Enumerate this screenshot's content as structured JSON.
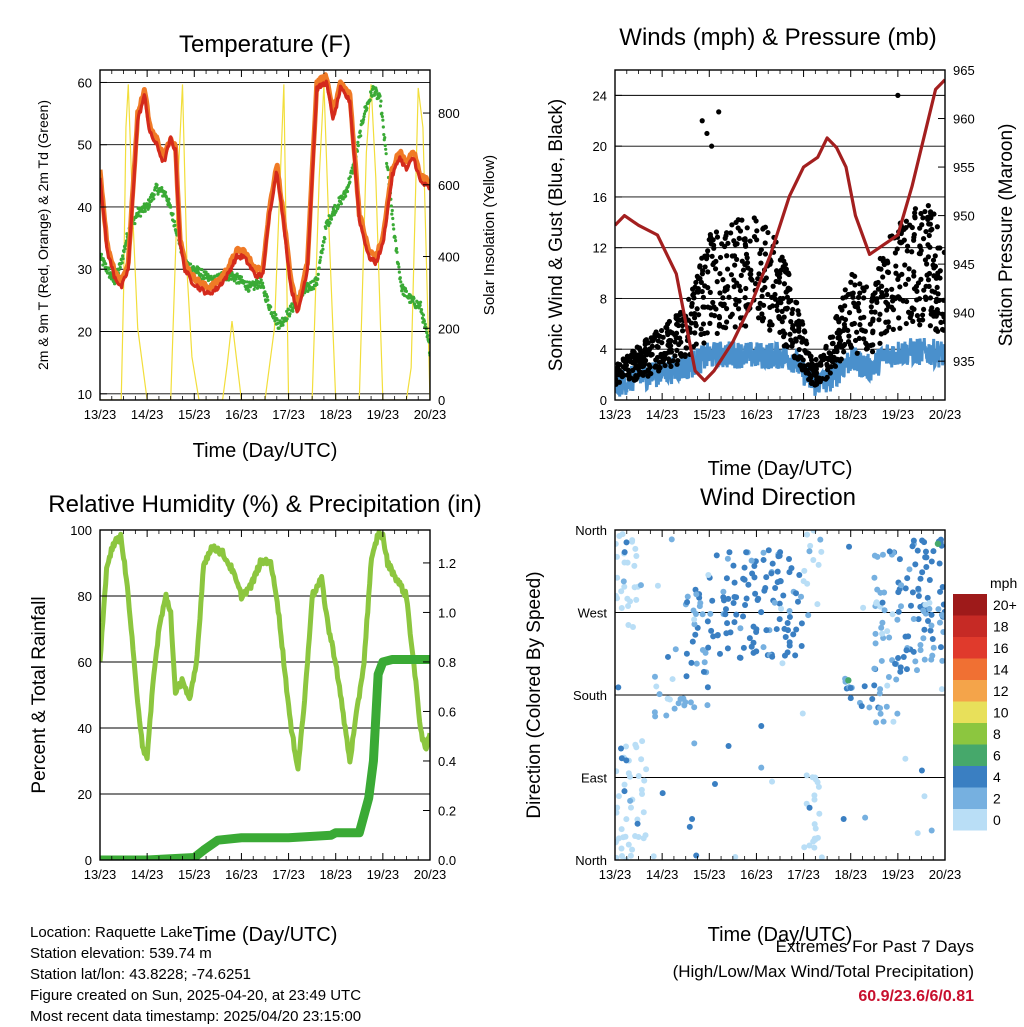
{
  "chart_data": [
    {
      "id": "temperature",
      "type": "line",
      "title": "Temperature (F)",
      "xlabel": "Time (Day/UTC)",
      "ylabel": "2m & 9m T (Red, Orange) & 2m Td (Green)",
      "ylabel_right": "Solar Insolation (Yellow)",
      "x_ticks": [
        "13/23",
        "14/23",
        "15/23",
        "16/23",
        "17/23",
        "18/23",
        "19/23",
        "20/23"
      ],
      "ylim": [
        9,
        62
      ],
      "y_ticks": [
        10,
        20,
        30,
        40,
        50,
        60
      ],
      "ylim_right": [
        0,
        920
      ],
      "y_ticks_right": [
        0,
        200,
        400,
        600,
        800
      ],
      "grid": true,
      "series": [
        {
          "color": "#f07a26",
          "x": [
            0,
            0.15,
            0.3,
            0.45,
            0.6,
            0.8,
            0.95,
            1.05,
            1.2,
            1.35,
            1.5,
            1.6,
            1.7,
            1.8,
            1.95,
            2.1,
            2.3,
            2.5,
            2.7,
            2.9,
            3.05,
            3.3,
            3.45,
            3.6,
            3.75,
            3.9,
            4.05,
            4.2,
            4.4,
            4.6,
            4.8,
            4.95,
            5.1,
            5.3,
            5.5,
            5.7,
            5.85,
            6.0,
            6.2,
            6.35,
            6.5,
            6.65,
            6.8,
            7.0
          ],
          "y": [
            46,
            34,
            30,
            28,
            31,
            55,
            59,
            53,
            51,
            48,
            51,
            50,
            35,
            31,
            29,
            28,
            27,
            28,
            30,
            33,
            33,
            30,
            30,
            40,
            47,
            38,
            28,
            24,
            31,
            60,
            61,
            55,
            60,
            58,
            39,
            33,
            32,
            35,
            46,
            49,
            47,
            49,
            45,
            44
          ]
        },
        {
          "color": "#d42a1c",
          "x": [
            0,
            0.15,
            0.3,
            0.45,
            0.6,
            0.8,
            0.95,
            1.05,
            1.2,
            1.35,
            1.5,
            1.6,
            1.7,
            1.8,
            1.95,
            2.1,
            2.3,
            2.5,
            2.7,
            2.9,
            3.05,
            3.3,
            3.45,
            3.6,
            3.75,
            3.9,
            4.05,
            4.2,
            4.4,
            4.6,
            4.8,
            4.95,
            5.1,
            5.3,
            5.5,
            5.7,
            5.85,
            6.0,
            6.2,
            6.35,
            6.5,
            6.65,
            6.8,
            7.0
          ],
          "y": [
            45,
            33,
            29,
            27,
            30,
            54,
            58,
            52,
            50,
            47,
            51,
            49,
            34,
            30,
            28,
            27,
            26,
            27,
            29,
            32,
            32,
            29,
            29,
            39,
            46,
            37,
            27,
            23,
            30,
            59,
            60,
            54,
            59,
            57,
            38,
            32,
            31,
            34,
            45,
            48,
            46,
            48,
            44,
            43
          ]
        },
        {
          "color": "#3aaa35",
          "x": [
            0,
            0.15,
            0.3,
            0.45,
            0.6,
            0.8,
            1.0,
            1.2,
            1.4,
            1.6,
            1.8,
            2.0,
            2.2,
            2.4,
            2.6,
            2.8,
            3.0,
            3.2,
            3.4,
            3.6,
            3.8,
            4.0,
            4.2,
            4.4,
            4.6,
            4.8,
            5.0,
            5.2,
            5.4,
            5.6,
            5.8,
            5.95,
            6.1,
            6.25,
            6.4,
            6.6,
            6.8,
            7.0
          ],
          "y": [
            32,
            30,
            28,
            31,
            36,
            39,
            40,
            43,
            42,
            37,
            31,
            30,
            29,
            28,
            29,
            29,
            28,
            27,
            28,
            24,
            21,
            23,
            25,
            27,
            28,
            37,
            40,
            42,
            47,
            55,
            59,
            57,
            46,
            35,
            27,
            25,
            24,
            17
          ]
        },
        {
          "color": "#f2de3b",
          "axis": "right",
          "x": [
            0,
            0.2,
            0.45,
            0.5,
            0.55,
            0.6,
            0.7,
            0.8,
            1.0,
            1.5,
            1.65,
            1.75,
            1.85,
            1.95,
            2.1,
            2.6,
            2.7,
            2.8,
            3.0,
            3.5,
            3.7,
            3.8,
            3.9,
            4.0,
            4.5,
            4.65,
            4.75,
            4.85,
            5.0,
            5.5,
            5.65,
            5.75,
            5.85,
            6.0,
            6.5,
            6.6,
            6.75,
            6.85,
            7.0
          ],
          "y": [
            0,
            0,
            0,
            300,
            760,
            880,
            500,
            200,
            0,
            0,
            600,
            880,
            350,
            120,
            0,
            0,
            100,
            220,
            0,
            0,
            200,
            540,
            880,
            0,
            0,
            620,
            880,
            500,
            0,
            0,
            690,
            880,
            620,
            0,
            0,
            90,
            870,
            760,
            0
          ]
        }
      ]
    },
    {
      "id": "winds",
      "type": "scatter",
      "title": "Winds (mph) & Pressure (mb)",
      "xlabel": "Time (Day/UTC)",
      "ylabel": "Sonic Wind & Gust (Blue, Black)",
      "ylabel_right": "Station Pressure (Maroon)",
      "x_ticks": [
        "13/23",
        "14/23",
        "15/23",
        "16/23",
        "17/23",
        "18/23",
        "19/23",
        "20/23"
      ],
      "ylim": [
        0,
        26
      ],
      "y_ticks": [
        0,
        4,
        8,
        12,
        16,
        20,
        24
      ],
      "ylim_right": [
        931,
        965
      ],
      "y_ticks_right": [
        935,
        940,
        945,
        950,
        955,
        960,
        965
      ],
      "grid": true,
      "gust_typical": [
        [
          0,
          2
        ],
        [
          0.5,
          3
        ],
        [
          1.0,
          4
        ],
        [
          1.5,
          5
        ],
        [
          2.0,
          9
        ],
        [
          2.4,
          10
        ],
        [
          3.0,
          10
        ],
        [
          3.4,
          9
        ],
        [
          3.8,
          6
        ],
        [
          4.2,
          2
        ],
        [
          4.5,
          3
        ],
        [
          5.0,
          7
        ],
        [
          5.4,
          6
        ],
        [
          5.8,
          9
        ],
        [
          6.2,
          10
        ],
        [
          6.6,
          11
        ],
        [
          7.0,
          9
        ]
      ],
      "wind_typical": [
        [
          0,
          1.2
        ],
        [
          0.5,
          1.8
        ],
        [
          1.0,
          2.2
        ],
        [
          1.5,
          2.6
        ],
        [
          2.0,
          3.5
        ],
        [
          2.5,
          3.6
        ],
        [
          3.0,
          3.5
        ],
        [
          3.5,
          3.5
        ],
        [
          3.8,
          3.2
        ],
        [
          4.2,
          1.3
        ],
        [
          4.5,
          1.5
        ],
        [
          5.0,
          3.2
        ],
        [
          5.4,
          2.5
        ],
        [
          5.8,
          3.6
        ],
        [
          6.2,
          3.8
        ],
        [
          6.6,
          3.8
        ],
        [
          7.0,
          3.6
        ]
      ],
      "series": [
        {
          "color": "#000000",
          "x": [
            0,
            7
          ],
          "y": [
            0,
            24
          ]
        },
        {
          "color": "#4a90cc",
          "x": [
            0,
            7
          ],
          "y": [
            0,
            6
          ]
        },
        {
          "color": "#a31f1f",
          "axis": "right",
          "x": [
            0,
            0.2,
            0.5,
            0.9,
            1.3,
            1.7,
            1.9,
            2.1,
            2.5,
            2.9,
            3.3,
            3.7,
            4.0,
            4.3,
            4.5,
            4.7,
            4.9,
            5.1,
            5.4,
            5.7,
            6.0,
            6.3,
            6.6,
            6.8,
            7.0
          ],
          "y": [
            949,
            950,
            949,
            948,
            944,
            934,
            933,
            934,
            937,
            941,
            946,
            952,
            955,
            956,
            958,
            957,
            955,
            950,
            946,
            947,
            948,
            953,
            959,
            963,
            964
          ]
        }
      ]
    },
    {
      "id": "humidity",
      "type": "line",
      "title": "Relative Humidity (%) & Precipitation (in)",
      "xlabel": "Time (Day/UTC)",
      "ylabel": "Percent & Total Rainfall",
      "x_ticks": [
        "13/23",
        "14/23",
        "15/23",
        "16/23",
        "17/23",
        "18/23",
        "19/23",
        "20/23"
      ],
      "ylim": [
        0,
        100
      ],
      "y_ticks": [
        0,
        20,
        40,
        60,
        80,
        100
      ],
      "ylim_right": [
        0,
        1.333
      ],
      "y_ticks_right": [
        "0.0",
        "0.2",
        "0.4",
        "0.6",
        "0.8",
        "1.0",
        "1.2"
      ],
      "grid": true,
      "series": [
        {
          "color": "#8cc63f",
          "x": [
            0,
            0.15,
            0.3,
            0.45,
            0.6,
            0.75,
            0.9,
            1.0,
            1.1,
            1.25,
            1.4,
            1.5,
            1.6,
            1.75,
            1.9,
            2.05,
            2.2,
            2.4,
            2.6,
            2.8,
            3.0,
            3.2,
            3.4,
            3.6,
            3.75,
            3.9,
            4.05,
            4.2,
            4.35,
            4.5,
            4.7,
            4.85,
            5.0,
            5.15,
            5.3,
            5.45,
            5.6,
            5.75,
            5.9,
            6.0,
            6.1,
            6.3,
            6.5,
            6.65,
            6.8,
            6.9,
            7.0
          ],
          "y": [
            60,
            90,
            96,
            98,
            80,
            55,
            35,
            30,
            50,
            70,
            80,
            75,
            50,
            55,
            48,
            60,
            90,
            95,
            93,
            88,
            80,
            83,
            90,
            91,
            80,
            60,
            40,
            28,
            50,
            80,
            85,
            70,
            60,
            45,
            30,
            45,
            60,
            90,
            99,
            98,
            90,
            85,
            80,
            60,
            40,
            33,
            38
          ]
        },
        {
          "color": "#3aaa35",
          "axis": "right",
          "x": [
            0,
            1.0,
            2.0,
            2.2,
            2.5,
            3.0,
            4.0,
            4.9,
            5.0,
            5.5,
            5.7,
            5.8,
            5.9,
            6.0,
            6.2,
            7.0
          ],
          "y": [
            0,
            0,
            0.01,
            0.04,
            0.08,
            0.09,
            0.09,
            0.1,
            0.11,
            0.11,
            0.25,
            0.4,
            0.75,
            0.8,
            0.81,
            0.81
          ]
        }
      ]
    },
    {
      "id": "wind-direction",
      "type": "scatter",
      "title": "Wind Direction",
      "xlabel": "Time (Day/UTC)",
      "ylabel": "Direction (Colored By Speed)",
      "x_ticks": [
        "13/23",
        "14/23",
        "15/23",
        "16/23",
        "17/23",
        "18/23",
        "19/23",
        "20/23"
      ],
      "y_ticks": [
        "North",
        "East",
        "South",
        "West",
        "North"
      ],
      "ylim": [
        0,
        360
      ],
      "grid": true,
      "clusters": [
        [
          0.0,
          0.7,
          0,
          130,
          0
        ],
        [
          0.0,
          0.5,
          250,
          360,
          0
        ],
        [
          0.8,
          1.5,
          150,
          200,
          2
        ],
        [
          1.5,
          2.0,
          160,
          300,
          3
        ],
        [
          2.0,
          3.0,
          220,
          340,
          4
        ],
        [
          3.0,
          4.0,
          220,
          340,
          4
        ],
        [
          4.0,
          4.4,
          0,
          100,
          0
        ],
        [
          4.0,
          4.4,
          300,
          360,
          1
        ],
        [
          4.8,
          5.5,
          160,
          200,
          3
        ],
        [
          5.5,
          6.0,
          150,
          340,
          2
        ],
        [
          6.0,
          7.0,
          260,
          360,
          4
        ],
        [
          6.0,
          7.0,
          200,
          280,
          3
        ]
      ],
      "legend": {
        "title": "mph",
        "labels": [
          "20+",
          "18",
          "16",
          "14",
          "12",
          "10",
          "8",
          "6",
          "4",
          "2",
          "0"
        ],
        "colors": [
          "#9e1a1a",
          "#c62a25",
          "#e03a2c",
          "#f07033",
          "#f4a44a",
          "#e8e05a",
          "#8cc63f",
          "#46a86b",
          "#3a7fc2",
          "#76b0e0",
          "#b9def6"
        ]
      }
    }
  ],
  "info": {
    "location": "Location: Raquette Lake",
    "elevation": "Station elevation: 539.74 m",
    "latlon": "Station lat/lon: 43.8228; -74.6251",
    "created": "Figure created on Sun, 2025-04-20, at 23:49 UTC",
    "recent": "Most recent data timestamp: 2025/04/20 23:15:00"
  },
  "extremes": {
    "line1": "Extremes For Past 7 Days",
    "line2": "(High/Low/Max Wind/Total Precipitation)",
    "value": "60.9/23.6/6/0.81"
  }
}
